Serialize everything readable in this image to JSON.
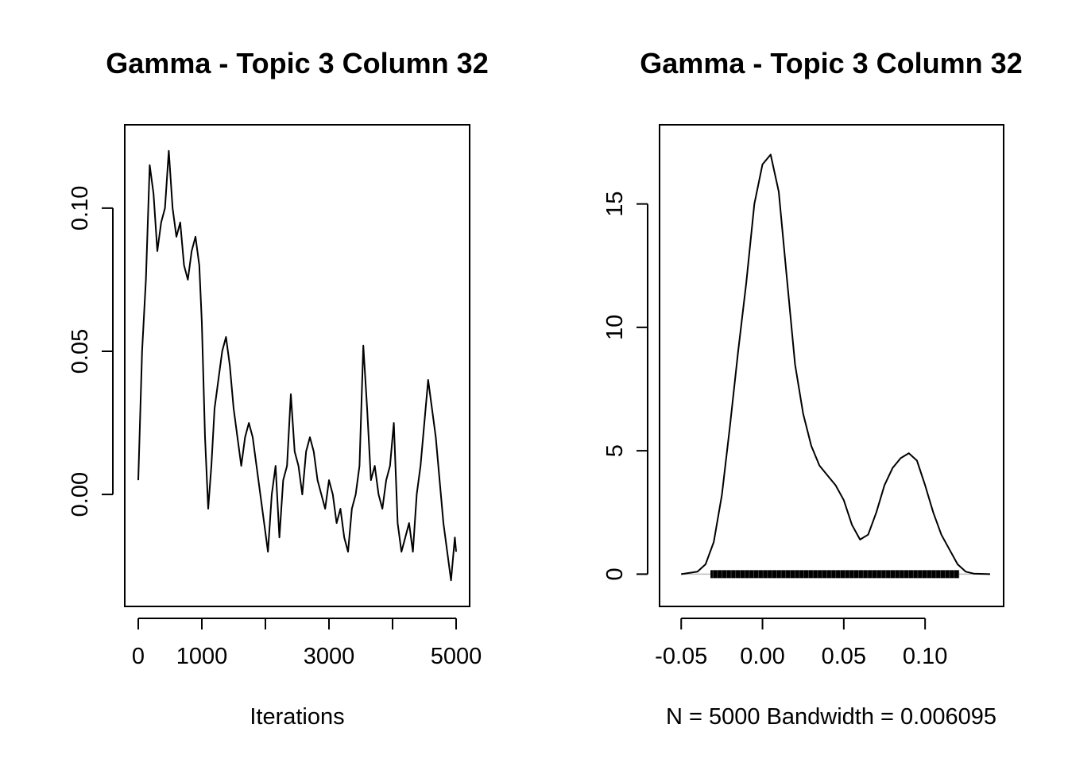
{
  "chart_data": [
    {
      "type": "line",
      "title": "Gamma - Topic 3 Column 32",
      "xlabel": "Iterations",
      "ylabel": "",
      "xlim": [
        0,
        5000
      ],
      "ylim": [
        -0.033,
        0.123
      ],
      "x_ticks": [
        0,
        1000,
        2000,
        3000,
        4000,
        5000
      ],
      "x_tick_labels": [
        "0",
        "1000",
        "",
        "3000",
        "",
        "5000"
      ],
      "y_ticks": [
        0.0,
        0.05,
        0.1
      ],
      "y_tick_labels": [
        "0.00",
        "0.05",
        "0.10"
      ],
      "grid": false,
      "series": [
        {
          "x": [
            0,
            60,
            120,
            180,
            240,
            300,
            360,
            420,
            480,
            540,
            600,
            660,
            720,
            780,
            840,
            900,
            960,
            1000,
            1050,
            1100,
            1150,
            1200,
            1260,
            1320,
            1380,
            1440,
            1500,
            1560,
            1620,
            1680,
            1740,
            1800,
            1860,
            1920,
            1980,
            2040,
            2100,
            2160,
            2220,
            2280,
            2340,
            2400,
            2460,
            2520,
            2580,
            2640,
            2700,
            2760,
            2820,
            2880,
            2940,
            3000,
            3060,
            3120,
            3180,
            3240,
            3300,
            3360,
            3420,
            3480,
            3540,
            3600,
            3660,
            3720,
            3780,
            3840,
            3900,
            3960,
            4020,
            4080,
            4140,
            4200,
            4260,
            4320,
            4380,
            4440,
            4500,
            4560,
            4620,
            4680,
            4740,
            4800,
            4860,
            4920,
            4980,
            5000
          ],
          "values": [
            0.005,
            0.05,
            0.075,
            0.115,
            0.105,
            0.085,
            0.095,
            0.1,
            0.12,
            0.1,
            0.09,
            0.095,
            0.08,
            0.075,
            0.085,
            0.09,
            0.08,
            0.06,
            0.02,
            -0.005,
            0.01,
            0.03,
            0.04,
            0.05,
            0.055,
            0.045,
            0.03,
            0.02,
            0.01,
            0.02,
            0.025,
            0.02,
            0.01,
            0.0,
            -0.01,
            -0.02,
            0.0,
            0.01,
            -0.015,
            0.005,
            0.01,
            0.035,
            0.015,
            0.01,
            0.0,
            0.015,
            0.02,
            0.015,
            0.005,
            0.0,
            -0.005,
            0.005,
            0.0,
            -0.01,
            -0.005,
            -0.015,
            -0.02,
            -0.005,
            0.0,
            0.01,
            0.052,
            0.03,
            0.005,
            0.01,
            0.0,
            -0.005,
            0.005,
            0.01,
            0.025,
            -0.01,
            -0.02,
            -0.015,
            -0.01,
            -0.02,
            0.0,
            0.01,
            0.025,
            0.04,
            0.03,
            0.02,
            0.005,
            -0.01,
            -0.02,
            -0.03,
            -0.015,
            -0.02
          ]
        }
      ]
    },
    {
      "type": "area",
      "title": "Gamma - Topic 3 Column 32",
      "xlabel": "N = 5000   Bandwidth = 0.006095",
      "ylabel": "",
      "xlim": [
        -0.055,
        0.14
      ],
      "ylim": [
        -0.6,
        17.5
      ],
      "x_ticks": [
        -0.05,
        0.0,
        0.05,
        0.1
      ],
      "x_tick_labels": [
        "-0.05",
        "0.00",
        "0.05",
        "0.10"
      ],
      "y_ticks": [
        0,
        5,
        10,
        15
      ],
      "y_tick_labels": [
        "0",
        "5",
        "10",
        "15"
      ],
      "grid": false,
      "series": [
        {
          "x": [
            -0.05,
            -0.04,
            -0.035,
            -0.03,
            -0.025,
            -0.02,
            -0.015,
            -0.01,
            -0.005,
            0.0,
            0.005,
            0.01,
            0.015,
            0.02,
            0.025,
            0.03,
            0.035,
            0.04,
            0.045,
            0.05,
            0.055,
            0.06,
            0.065,
            0.07,
            0.075,
            0.08,
            0.085,
            0.09,
            0.095,
            0.1,
            0.105,
            0.11,
            0.115,
            0.12,
            0.125,
            0.13,
            0.14
          ],
          "values": [
            0.0,
            0.1,
            0.4,
            1.3,
            3.2,
            6.0,
            9.0,
            11.8,
            15.0,
            16.6,
            17.0,
            15.5,
            12.0,
            8.5,
            6.5,
            5.2,
            4.4,
            4.0,
            3.6,
            3.0,
            2.0,
            1.4,
            1.6,
            2.5,
            3.6,
            4.3,
            4.7,
            4.9,
            4.6,
            3.6,
            2.5,
            1.6,
            1.0,
            0.4,
            0.1,
            0.02,
            0.0
          ]
        }
      ],
      "rug": {
        "from": -0.032,
        "to": 0.121
      }
    }
  ]
}
